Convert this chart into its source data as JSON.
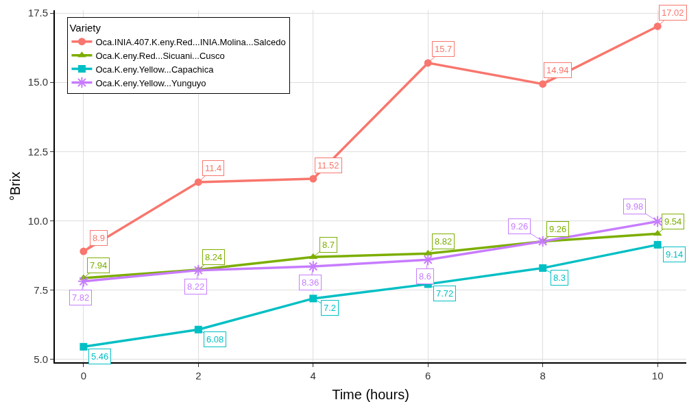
{
  "chart_data": {
    "type": "line",
    "xlabel": "Time (hours)",
    "ylabel": "°Brix",
    "legend_title": "Variety",
    "x": [
      0,
      2,
      4,
      6,
      8,
      10
    ],
    "series": [
      {
        "name": "Oca.INIA.407.K.eny.Red...INIA.Molina...Salcedo",
        "color": "#f8766d",
        "marker": "circle",
        "values": [
          8.9,
          11.4,
          11.52,
          15.7,
          14.94,
          17.02
        ]
      },
      {
        "name": "Oca.K.eny.Red...Sicuani...Cusco",
        "color": "#7cae00",
        "marker": "triangle",
        "values": [
          7.94,
          8.24,
          8.7,
          8.82,
          9.26,
          9.54
        ]
      },
      {
        "name": "Oca.K.eny.Yellow...Capachica",
        "color": "#00bfc4",
        "marker": "square",
        "values": [
          5.46,
          6.08,
          7.2,
          7.72,
          8.3,
          9.14
        ]
      },
      {
        "name": "Oca.K.eny.Yellow...Yunguyo",
        "color": "#c77cff",
        "marker": "cross",
        "values": [
          7.82,
          8.22,
          8.36,
          8.6,
          9.26,
          9.98
        ]
      }
    ],
    "xlim": [
      -0.5,
      10.5
    ],
    "xticks": [
      0,
      2,
      4,
      6,
      8,
      10
    ],
    "ylim": [
      4.9,
      17.6
    ],
    "yticks": [
      {
        "value": 5,
        "label": "5.0"
      },
      {
        "value": 7.5,
        "label": "7.5"
      },
      {
        "value": 10,
        "label": "10.0"
      },
      {
        "value": 12.5,
        "label": "12.5"
      },
      {
        "value": 15,
        "label": "15.0"
      },
      {
        "value": 17.5,
        "label": "17.5"
      }
    ],
    "grid": true,
    "legend": "top left",
    "data_labels": true,
    "line_style": "solid"
  }
}
